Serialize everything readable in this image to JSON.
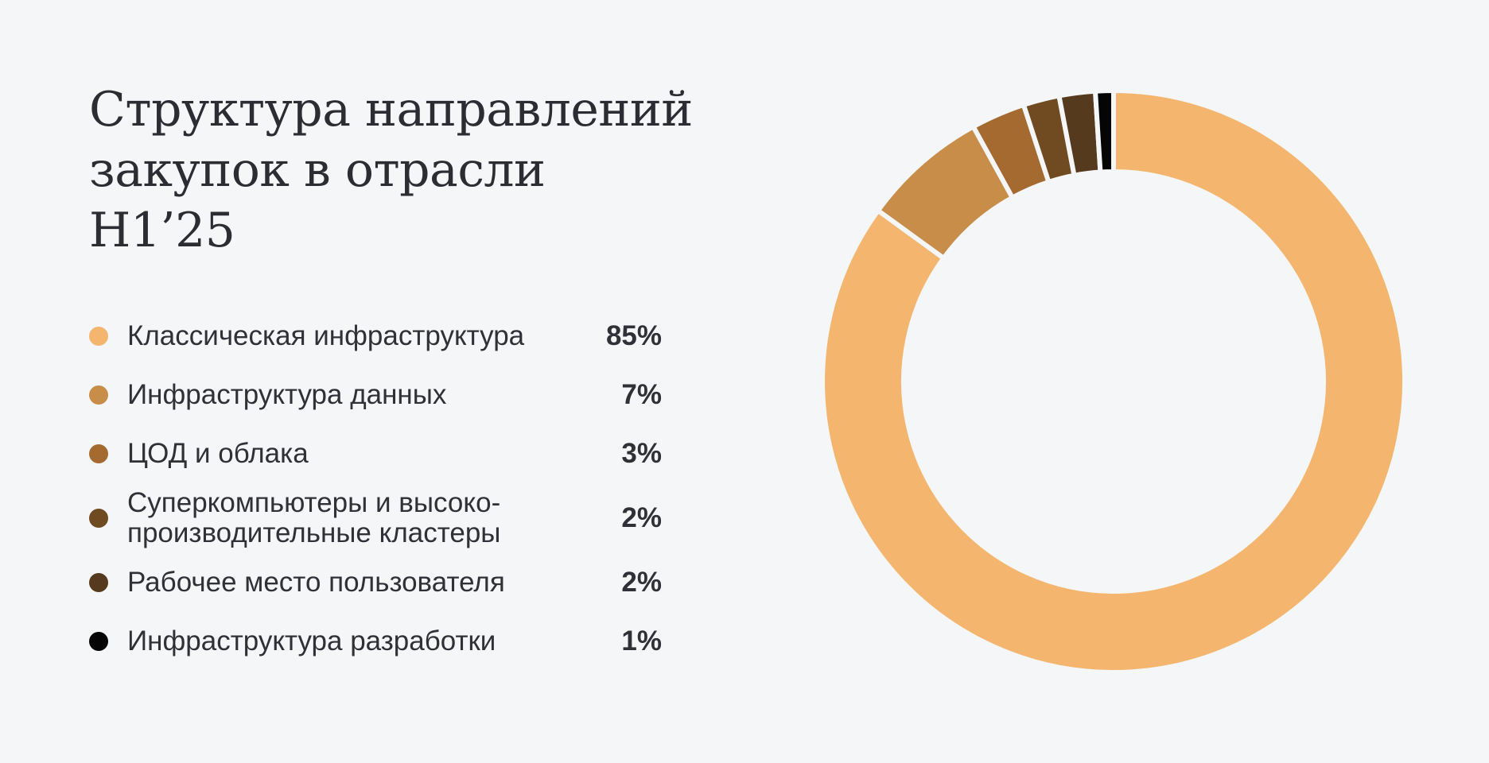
{
  "title": "Структура направлений закупок в отрасли H1’25",
  "chart_data": {
    "type": "pie",
    "title": "Структура направлений закупок в отрасли H1’25",
    "categories": [
      "Классическая инфраструктура",
      "Инфраструктура данных",
      "ЦОД и облака",
      "Суперкомпьютеры и высоко-\nпроизводительные кластеры",
      "Рабочее место пользователя",
      "Инфраструктура разработки"
    ],
    "values": [
      85,
      7,
      3,
      2,
      2,
      1
    ],
    "value_labels": [
      "85%",
      "7%",
      "3%",
      "2%",
      "2%",
      "1%"
    ],
    "colors": [
      "#f4b66f",
      "#c98d4a",
      "#a46a30",
      "#704a21",
      "#553a1e",
      "#050505"
    ],
    "donut": true,
    "legend_position": "left"
  }
}
